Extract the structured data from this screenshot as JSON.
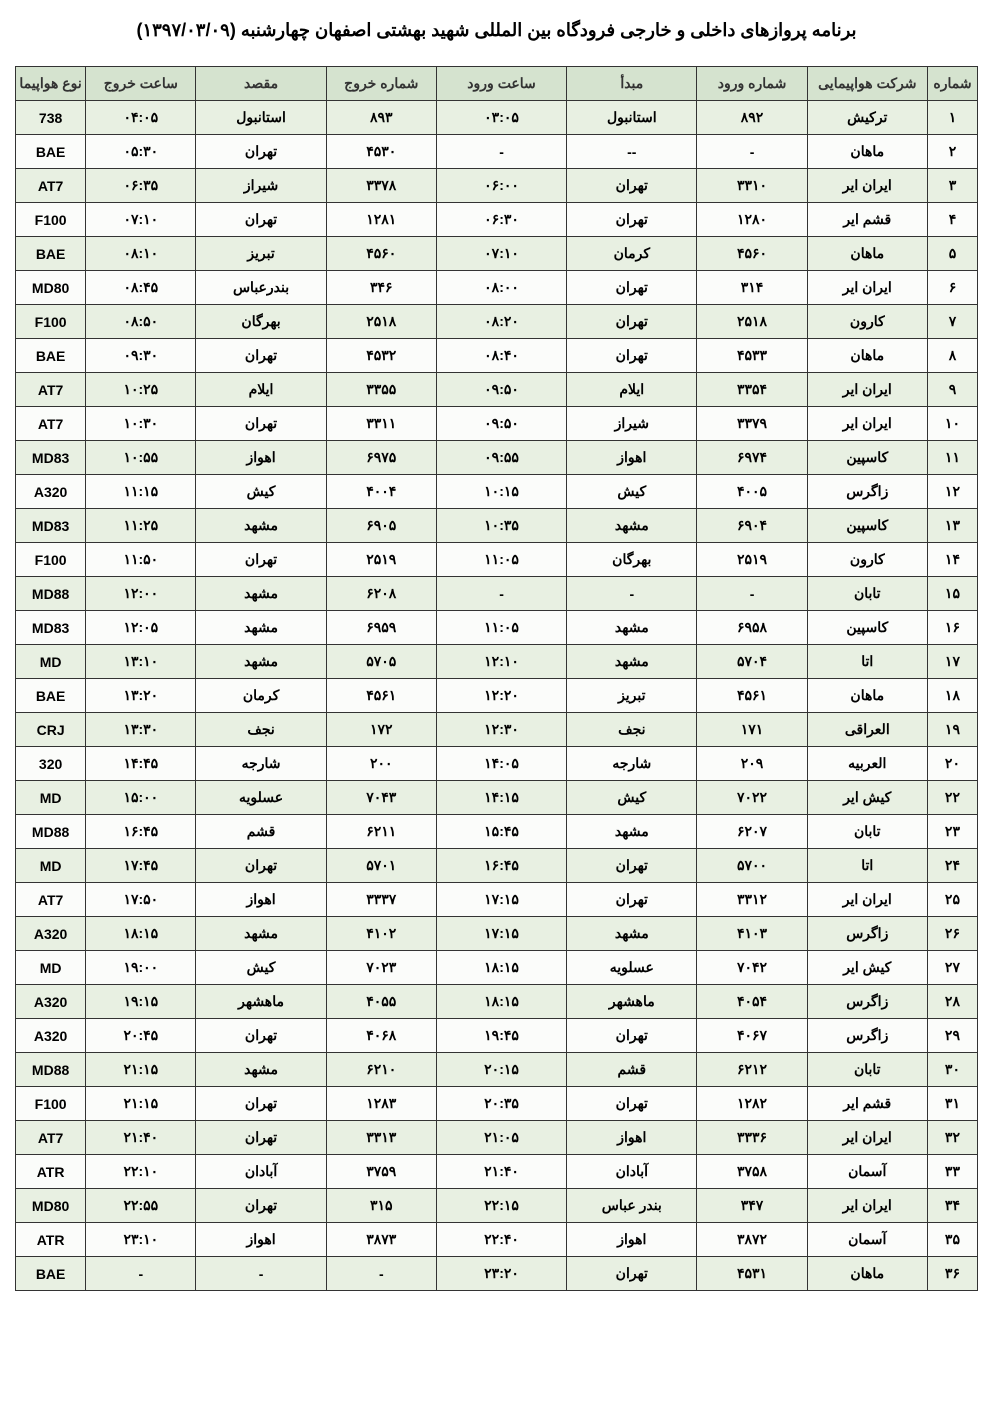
{
  "title": "برنامه پروازهای داخلی و خارجی فرودگاه بین المللی شهید بهشتی اصفهان چهارشنبه (۱۳۹۷/۰۳/۰۹)",
  "headers": {
    "idx": "شماره",
    "airline": "شرکت هواپیمایی",
    "arrFlight": "شماره ورود",
    "origin": "مبدأ",
    "arrTime": "ساعت ورود",
    "depFlight": "شماره خروج",
    "dest": "مقصد",
    "depTime": "ساعت خروج",
    "aircraft": "نوع هواپیما"
  },
  "rows": [
    {
      "idx": "۱",
      "airline": "ترکیش",
      "arrFlight": "۸۹۲",
      "origin": "استانبول",
      "arrTime": "۰۳:۰۵",
      "depFlight": "۸۹۳",
      "dest": "استانبول",
      "depTime": "۰۴:۰۵",
      "aircraft": "738"
    },
    {
      "idx": "۲",
      "airline": "ماهان",
      "arrFlight": "-",
      "origin": "--",
      "arrTime": "-",
      "depFlight": "۴۵۳۰",
      "dest": "تهران",
      "depTime": "۰۵:۳۰",
      "aircraft": "BAE"
    },
    {
      "idx": "۳",
      "airline": "ایران ایر",
      "arrFlight": "۳۳۱۰",
      "origin": "تهران",
      "arrTime": "۰۶:۰۰",
      "depFlight": "۳۳۷۸",
      "dest": "شیراز",
      "depTime": "۰۶:۳۵",
      "aircraft": "AT7"
    },
    {
      "idx": "۴",
      "airline": "قشم ایر",
      "arrFlight": "۱۲۸۰",
      "origin": "تهران",
      "arrTime": "۰۶:۳۰",
      "depFlight": "۱۲۸۱",
      "dest": "تهران",
      "depTime": "۰۷:۱۰",
      "aircraft": "F100"
    },
    {
      "idx": "۵",
      "airline": "ماهان",
      "arrFlight": "۴۵۶۰",
      "origin": "کرمان",
      "arrTime": "۰۷:۱۰",
      "depFlight": "۴۵۶۰",
      "dest": "تبریز",
      "depTime": "۰۸:۱۰",
      "aircraft": "BAE"
    },
    {
      "idx": "۶",
      "airline": "ایران ایر",
      "arrFlight": "۳۱۴",
      "origin": "تهران",
      "arrTime": "۰۸:۰۰",
      "depFlight": "۳۴۶",
      "dest": "بندرعباس",
      "depTime": "۰۸:۴۵",
      "aircraft": "MD80"
    },
    {
      "idx": "۷",
      "airline": "کارون",
      "arrFlight": "۲۵۱۸",
      "origin": "تهران",
      "arrTime": "۰۸:۲۰",
      "depFlight": "۲۵۱۸",
      "dest": "بهرگان",
      "depTime": "۰۸:۵۰",
      "aircraft": "F100"
    },
    {
      "idx": "۸",
      "airline": "ماهان",
      "arrFlight": "۴۵۳۳",
      "origin": "تهران",
      "arrTime": "۰۸:۴۰",
      "depFlight": "۴۵۳۲",
      "dest": "تهران",
      "depTime": "۰۹:۳۰",
      "aircraft": "BAE"
    },
    {
      "idx": "۹",
      "airline": "ایران ایر",
      "arrFlight": "۳۳۵۴",
      "origin": "ایلام",
      "arrTime": "۰۹:۵۰",
      "depFlight": "۳۳۵۵",
      "dest": "ایلام",
      "depTime": "۱۰:۲۵",
      "aircraft": "AT7"
    },
    {
      "idx": "۱۰",
      "airline": "ایران ایر",
      "arrFlight": "۳۳۷۹",
      "origin": "شیراز",
      "arrTime": "۰۹:۵۰",
      "depFlight": "۳۳۱۱",
      "dest": "تهران",
      "depTime": "۱۰:۳۰",
      "aircraft": "AT7"
    },
    {
      "idx": "۱۱",
      "airline": "کاسپین",
      "arrFlight": "۶۹۷۴",
      "origin": "اهواز",
      "arrTime": "۰۹:۵۵",
      "depFlight": "۶۹۷۵",
      "dest": "اهواز",
      "depTime": "۱۰:۵۵",
      "aircraft": "MD83"
    },
    {
      "idx": "۱۲",
      "airline": "زاگرس",
      "arrFlight": "۴۰۰۵",
      "origin": "کیش",
      "arrTime": "۱۰:۱۵",
      "depFlight": "۴۰۰۴",
      "dest": "کیش",
      "depTime": "۱۱:۱۵",
      "aircraft": "A320"
    },
    {
      "idx": "۱۳",
      "airline": "کاسپین",
      "arrFlight": "۶۹۰۴",
      "origin": "مشهد",
      "arrTime": "۱۰:۳۵",
      "depFlight": "۶۹۰۵",
      "dest": "مشهد",
      "depTime": "۱۱:۲۵",
      "aircraft": "MD83"
    },
    {
      "idx": "۱۴",
      "airline": "کارون",
      "arrFlight": "۲۵۱۹",
      "origin": "بهرگان",
      "arrTime": "۱۱:۰۵",
      "depFlight": "۲۵۱۹",
      "dest": "تهران",
      "depTime": "۱۱:۵۰",
      "aircraft": "F100"
    },
    {
      "idx": "۱۵",
      "airline": "تابان",
      "arrFlight": "-",
      "origin": "-",
      "arrTime": "-",
      "depFlight": "۶۲۰۸",
      "dest": "مشهد",
      "depTime": "۱۲:۰۰",
      "aircraft": "MD88"
    },
    {
      "idx": "۱۶",
      "airline": "کاسپین",
      "arrFlight": "۶۹۵۸",
      "origin": "مشهد",
      "arrTime": "۱۱:۰۵",
      "depFlight": "۶۹۵۹",
      "dest": "مشهد",
      "depTime": "۱۲:۰۵",
      "aircraft": "MD83"
    },
    {
      "idx": "۱۷",
      "airline": "اتا",
      "arrFlight": "۵۷۰۴",
      "origin": "مشهد",
      "arrTime": "۱۲:۱۰",
      "depFlight": "۵۷۰۵",
      "dest": "مشهد",
      "depTime": "۱۳:۱۰",
      "aircraft": "MD"
    },
    {
      "idx": "۱۸",
      "airline": "ماهان",
      "arrFlight": "۴۵۶۱",
      "origin": "تبریز",
      "arrTime": "۱۲:۲۰",
      "depFlight": "۴۵۶۱",
      "dest": "کرمان",
      "depTime": "۱۳:۲۰",
      "aircraft": "BAE"
    },
    {
      "idx": "۱۹",
      "airline": "العراقی",
      "arrFlight": "۱۷۱",
      "origin": "نجف",
      "arrTime": "۱۲:۳۰",
      "depFlight": "۱۷۲",
      "dest": "نجف",
      "depTime": "۱۳:۳۰",
      "aircraft": "CRJ"
    },
    {
      "idx": "۲۰",
      "airline": "العربیه",
      "arrFlight": "۲۰۹",
      "origin": "شارجه",
      "arrTime": "۱۴:۰۵",
      "depFlight": "۲۰۰",
      "dest": "شارجه",
      "depTime": "۱۴:۴۵",
      "aircraft": "320"
    },
    {
      "idx": "۲۲",
      "airline": "کیش ایر",
      "arrFlight": "۷۰۲۲",
      "origin": "کیش",
      "arrTime": "۱۴:۱۵",
      "depFlight": "۷۰۴۳",
      "dest": "عسلویه",
      "depTime": "۱۵:۰۰",
      "aircraft": "MD"
    },
    {
      "idx": "۲۳",
      "airline": "تابان",
      "arrFlight": "۶۲۰۷",
      "origin": "مشهد",
      "arrTime": "۱۵:۴۵",
      "depFlight": "۶۲۱۱",
      "dest": "قشم",
      "depTime": "۱۶:۴۵",
      "aircraft": "MD88"
    },
    {
      "idx": "۲۴",
      "airline": "اتا",
      "arrFlight": "۵۷۰۰",
      "origin": "تهران",
      "arrTime": "۱۶:۴۵",
      "depFlight": "۵۷۰۱",
      "dest": "تهران",
      "depTime": "۱۷:۴۵",
      "aircraft": "MD"
    },
    {
      "idx": "۲۵",
      "airline": "ایران ایر",
      "arrFlight": "۳۳۱۲",
      "origin": "تهران",
      "arrTime": "۱۷:۱۵",
      "depFlight": "۳۳۳۷",
      "dest": "اهواز",
      "depTime": "۱۷:۵۰",
      "aircraft": "AT7"
    },
    {
      "idx": "۲۶",
      "airline": "زاگرس",
      "arrFlight": "۴۱۰۳",
      "origin": "مشهد",
      "arrTime": "۱۷:۱۵",
      "depFlight": "۴۱۰۲",
      "dest": "مشهد",
      "depTime": "۱۸:۱۵",
      "aircraft": "A320"
    },
    {
      "idx": "۲۷",
      "airline": "کیش ایر",
      "arrFlight": "۷۰۴۲",
      "origin": "عسلویه",
      "arrTime": "۱۸:۱۵",
      "depFlight": "۷۰۲۳",
      "dest": "کیش",
      "depTime": "۱۹:۰۰",
      "aircraft": "MD"
    },
    {
      "idx": "۲۸",
      "airline": "زاگرس",
      "arrFlight": "۴۰۵۴",
      "origin": "ماهشهر",
      "arrTime": "۱۸:۱۵",
      "depFlight": "۴۰۵۵",
      "dest": "ماهشهر",
      "depTime": "۱۹:۱۵",
      "aircraft": "A320"
    },
    {
      "idx": "۲۹",
      "airline": "زاگرس",
      "arrFlight": "۴۰۶۷",
      "origin": "تهران",
      "arrTime": "۱۹:۴۵",
      "depFlight": "۴۰۶۸",
      "dest": "تهران",
      "depTime": "۲۰:۴۵",
      "aircraft": "A320"
    },
    {
      "idx": "۳۰",
      "airline": "تابان",
      "arrFlight": "۶۲۱۲",
      "origin": "قشم",
      "arrTime": "۲۰:۱۵",
      "depFlight": "۶۲۱۰",
      "dest": "مشهد",
      "depTime": "۲۱:۱۵",
      "aircraft": "MD88"
    },
    {
      "idx": "۳۱",
      "airline": "قشم ایر",
      "arrFlight": "۱۲۸۲",
      "origin": "تهران",
      "arrTime": "۲۰:۳۵",
      "depFlight": "۱۲۸۳",
      "dest": "تهران",
      "depTime": "۲۱:۱۵",
      "aircraft": "F100"
    },
    {
      "idx": "۳۲",
      "airline": "ایران ایر",
      "arrFlight": "۳۳۳۶",
      "origin": "اهواز",
      "arrTime": "۲۱:۰۵",
      "depFlight": "۳۳۱۳",
      "dest": "تهران",
      "depTime": "۲۱:۴۰",
      "aircraft": "AT7"
    },
    {
      "idx": "۳۳",
      "airline": "آسمان",
      "arrFlight": "۳۷۵۸",
      "origin": "آبادان",
      "arrTime": "۲۱:۴۰",
      "depFlight": "۳۷۵۹",
      "dest": "آبادان",
      "depTime": "۲۲:۱۰",
      "aircraft": "ATR"
    },
    {
      "idx": "۳۴",
      "airline": "ایران ایر",
      "arrFlight": "۳۴۷",
      "origin": "بندر عباس",
      "arrTime": "۲۲:۱۵",
      "depFlight": "۳۱۵",
      "dest": "تهران",
      "depTime": "۲۲:۵۵",
      "aircraft": "MD80"
    },
    {
      "idx": "۳۵",
      "airline": "آسمان",
      "arrFlight": "۳۸۷۲",
      "origin": "اهواز",
      "arrTime": "۲۲:۴۰",
      "depFlight": "۳۸۷۳",
      "dest": "اهواز",
      "depTime": "۲۳:۱۰",
      "aircraft": "ATR"
    },
    {
      "idx": "۳۶",
      "airline": "ماهان",
      "arrFlight": "۴۵۳۱",
      "origin": "تهران",
      "arrTime": "۲۳:۲۰",
      "depFlight": "-",
      "dest": "-",
      "depTime": "-",
      "aircraft": "BAE"
    }
  ],
  "styles": {
    "headerBg": "#d5e3cf",
    "altRowBg": "#e8f0e2",
    "rowBg": "#fbfcfa",
    "borderColor": "#333333",
    "textColor": "#000000"
  }
}
